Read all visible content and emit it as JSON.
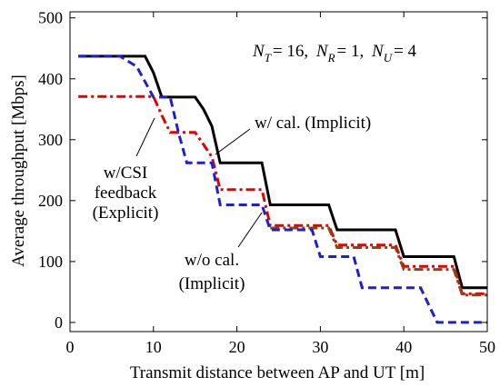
{
  "chart_data": {
    "type": "line",
    "xlabel": "Transmit distance between AP and UT [m]",
    "ylabel": "Average throughput [Mbps]",
    "xlim": [
      0,
      50
    ],
    "ylim": [
      -15,
      510
    ],
    "xticks": [
      0,
      10,
      20,
      30,
      40,
      50
    ],
    "yticks": [
      0,
      100,
      200,
      300,
      400,
      500
    ],
    "grid": false,
    "legend": "none",
    "parameters": {
      "nt_sym": "N",
      "nt_sub": "T",
      "nt_val": "= 16,",
      "nr_sym": "N",
      "nr_sub": "R",
      "nr_val": "= 1,",
      "nu_sym": "N",
      "nu_sub": "U",
      "nu_val": "= 4"
    },
    "annotations": [
      {
        "lines": [
          "w/ cal. (Implicit)"
        ]
      },
      {
        "lines": [
          "w/CSI",
          "feedback",
          "(Explicit)"
        ]
      },
      {
        "lines": [
          "w/o cal.",
          "(Implicit)"
        ]
      }
    ],
    "series": [
      {
        "color": "#000000",
        "style": "solid",
        "points": [
          [
            1,
            437
          ],
          [
            9,
            437
          ],
          [
            10,
            410
          ],
          [
            11,
            370
          ],
          [
            15,
            370
          ],
          [
            16,
            350
          ],
          [
            17,
            322
          ],
          [
            18,
            262
          ],
          [
            23,
            262
          ],
          [
            24,
            193
          ],
          [
            31,
            193
          ],
          [
            32,
            152
          ],
          [
            39,
            152
          ],
          [
            40,
            108
          ],
          [
            46,
            108
          ],
          [
            47,
            57
          ],
          [
            50,
            57
          ]
        ]
      },
      {
        "color": "#e60000",
        "style": "dashdot",
        "points": [
          [
            1,
            371
          ],
          [
            10,
            371
          ],
          [
            11,
            340
          ],
          [
            12,
            312
          ],
          [
            15,
            312
          ],
          [
            16,
            292
          ],
          [
            17,
            272
          ],
          [
            18,
            218
          ],
          [
            23,
            218
          ],
          [
            24,
            159
          ],
          [
            31,
            159
          ],
          [
            32,
            127
          ],
          [
            39,
            127
          ],
          [
            40,
            92
          ],
          [
            46,
            92
          ],
          [
            47,
            47
          ],
          [
            50,
            47
          ]
        ]
      },
      {
        "color": "#8b4513",
        "style": "dashdot",
        "points": [
          [
            24,
            155
          ],
          [
            31,
            155
          ],
          [
            32,
            123
          ],
          [
            39,
            123
          ],
          [
            40,
            87
          ],
          [
            46,
            87
          ],
          [
            47,
            45
          ],
          [
            50,
            45
          ]
        ]
      },
      {
        "color": "#1f1fcc",
        "style": "dashed",
        "points": [
          [
            1,
            437
          ],
          [
            6,
            437
          ],
          [
            8,
            420
          ],
          [
            10,
            370
          ],
          [
            12,
            370
          ],
          [
            13,
            312
          ],
          [
            14,
            262
          ],
          [
            17,
            262
          ],
          [
            18,
            193
          ],
          [
            23,
            193
          ],
          [
            24,
            152
          ],
          [
            29,
            152
          ],
          [
            30,
            108
          ],
          [
            34,
            108
          ],
          [
            35,
            57
          ],
          [
            42,
            57
          ],
          [
            44,
            0
          ],
          [
            50,
            0
          ]
        ]
      }
    ]
  }
}
